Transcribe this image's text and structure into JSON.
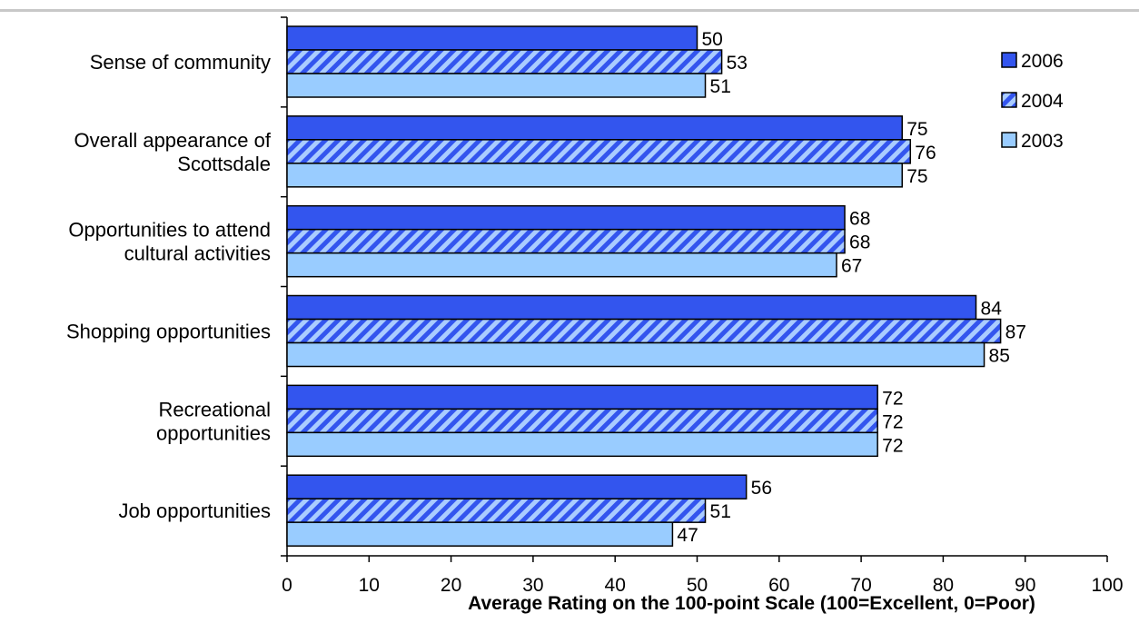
{
  "chart_data": {
    "type": "bar",
    "orientation": "horizontal",
    "categories": [
      [
        "Sense of community"
      ],
      [
        "Overall appearance of",
        "Scottsdale"
      ],
      [
        "Opportunities to attend",
        "cultural activities"
      ],
      [
        "Shopping opportunities"
      ],
      [
        "Recreational",
        "opportunities"
      ],
      [
        "Job opportunities"
      ]
    ],
    "series": [
      {
        "name": "2006",
        "values": [
          50,
          75,
          68,
          84,
          72,
          56
        ],
        "color": "#3355ee",
        "pattern": "solid"
      },
      {
        "name": "2004",
        "values": [
          53,
          76,
          68,
          87,
          72,
          51
        ],
        "color": "#3355ee",
        "pattern": "diagonal-hatch",
        "hatch_color": "#aaccff"
      },
      {
        "name": "2003",
        "values": [
          51,
          75,
          67,
          85,
          72,
          47
        ],
        "color": "#99ccff",
        "pattern": "solid"
      }
    ],
    "xlim": [
      0,
      100
    ],
    "xticks": [
      0,
      10,
      20,
      30,
      40,
      50,
      60,
      70,
      80,
      90,
      100
    ],
    "xlabel": "Average Rating on the 100-point Scale (100=Excellent, 0=Poor)",
    "ylabel": "",
    "title": "",
    "legend": "top-right",
    "grid": false,
    "data_labels": true
  }
}
